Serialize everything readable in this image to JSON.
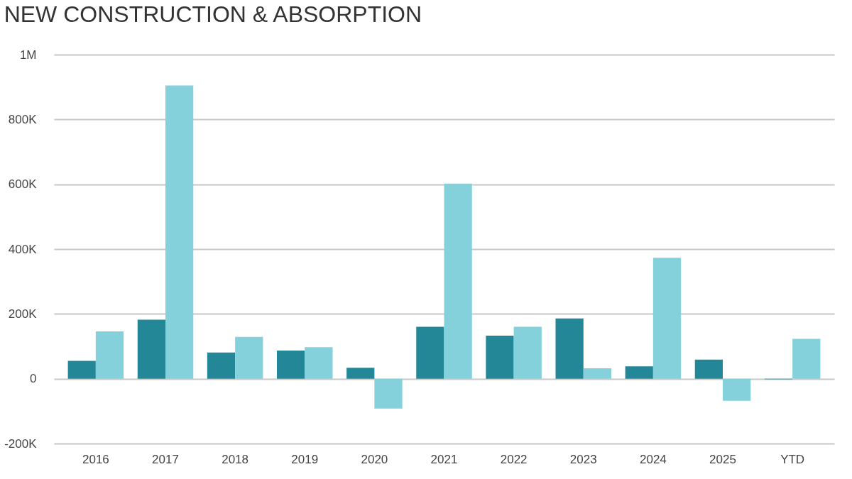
{
  "chart_data": {
    "type": "bar",
    "title": "NEW CONSTRUCTION & ABSORPTION",
    "categories": [
      "2016",
      "2017",
      "2018",
      "2019",
      "2020",
      "2021",
      "2022",
      "2023",
      "2024",
      "2025",
      "YTD"
    ],
    "series": [
      {
        "color": "#238798",
        "values": [
          55000,
          182000,
          81000,
          87000,
          34000,
          160000,
          133000,
          186000,
          38000,
          59000,
          -2000
        ]
      },
      {
        "color": "#84d0db",
        "values": [
          146000,
          905000,
          129000,
          97000,
          -92000,
          602000,
          160000,
          32000,
          373000,
          -68000,
          123000
        ]
      }
    ],
    "ylim": [
      -200000,
      1000000
    ],
    "yticks": [
      {
        "value": -200000,
        "label": "-200K"
      },
      0,
      {
        "value": 200000,
        "label": "200K"
      },
      {
        "value": 400000,
        "label": "400K"
      },
      {
        "value": 600000,
        "label": "600K"
      },
      {
        "value": 800000,
        "label": "800K"
      },
      {
        "value": 1000000,
        "label": "1M"
      }
    ],
    "grid": "y"
  }
}
